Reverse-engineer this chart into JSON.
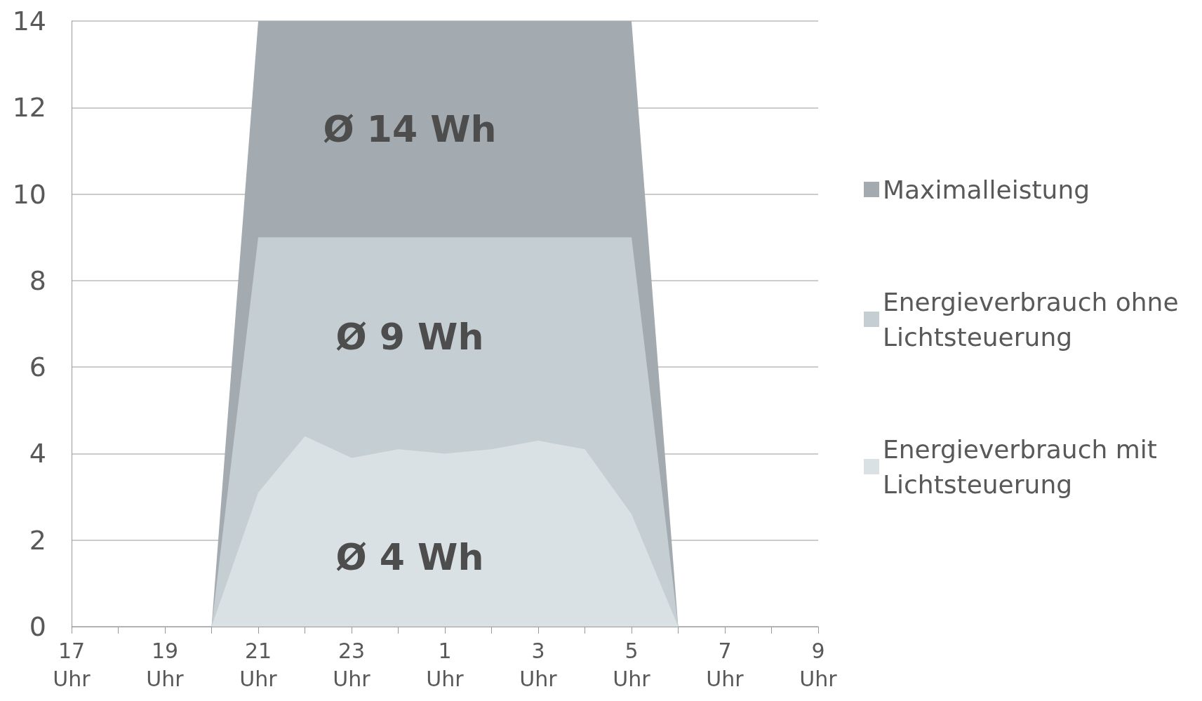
{
  "chart_data": {
    "type": "area",
    "categories": [
      "17\nUhr",
      null,
      "19\nUhr",
      null,
      "21\nUhr",
      null,
      "23\nUhr",
      null,
      "1\nUhr",
      null,
      "3\nUhr",
      null,
      "5\nUhr",
      null,
      "7\nUhr",
      null,
      "9\nUhr"
    ],
    "series": [
      {
        "name": "Maximalleistung",
        "color": "#a4abb0",
        "values": [
          null,
          null,
          null,
          0,
          14,
          14,
          14,
          14,
          14,
          14,
          14,
          14,
          14,
          0,
          null,
          null,
          null
        ]
      },
      {
        "name": "Energieverbrauch ohne Lichtsteuerung",
        "color": "#c5cfd3",
        "values": [
          null,
          null,
          null,
          0,
          9,
          9,
          9,
          9,
          9,
          9,
          9,
          9,
          9,
          0,
          null,
          null,
          null
        ]
      },
      {
        "name": "Energieverbrauch mit Lichtsteuerung",
        "color": "#dae1e4",
        "values": [
          null,
          null,
          null,
          0,
          3.1,
          4.4,
          3.9,
          4.1,
          4.0,
          4.1,
          4.3,
          4.1,
          2.6,
          0,
          null,
          null,
          null
        ]
      }
    ],
    "ylim": [
      0,
      14
    ],
    "yticks": [
      0,
      2,
      4,
      6,
      8,
      10,
      12,
      14
    ],
    "grid": "y",
    "legend": "right",
    "annotations": [
      "Ø 14 Wh",
      "Ø 9 Wh",
      "Ø 4 Wh"
    ]
  }
}
